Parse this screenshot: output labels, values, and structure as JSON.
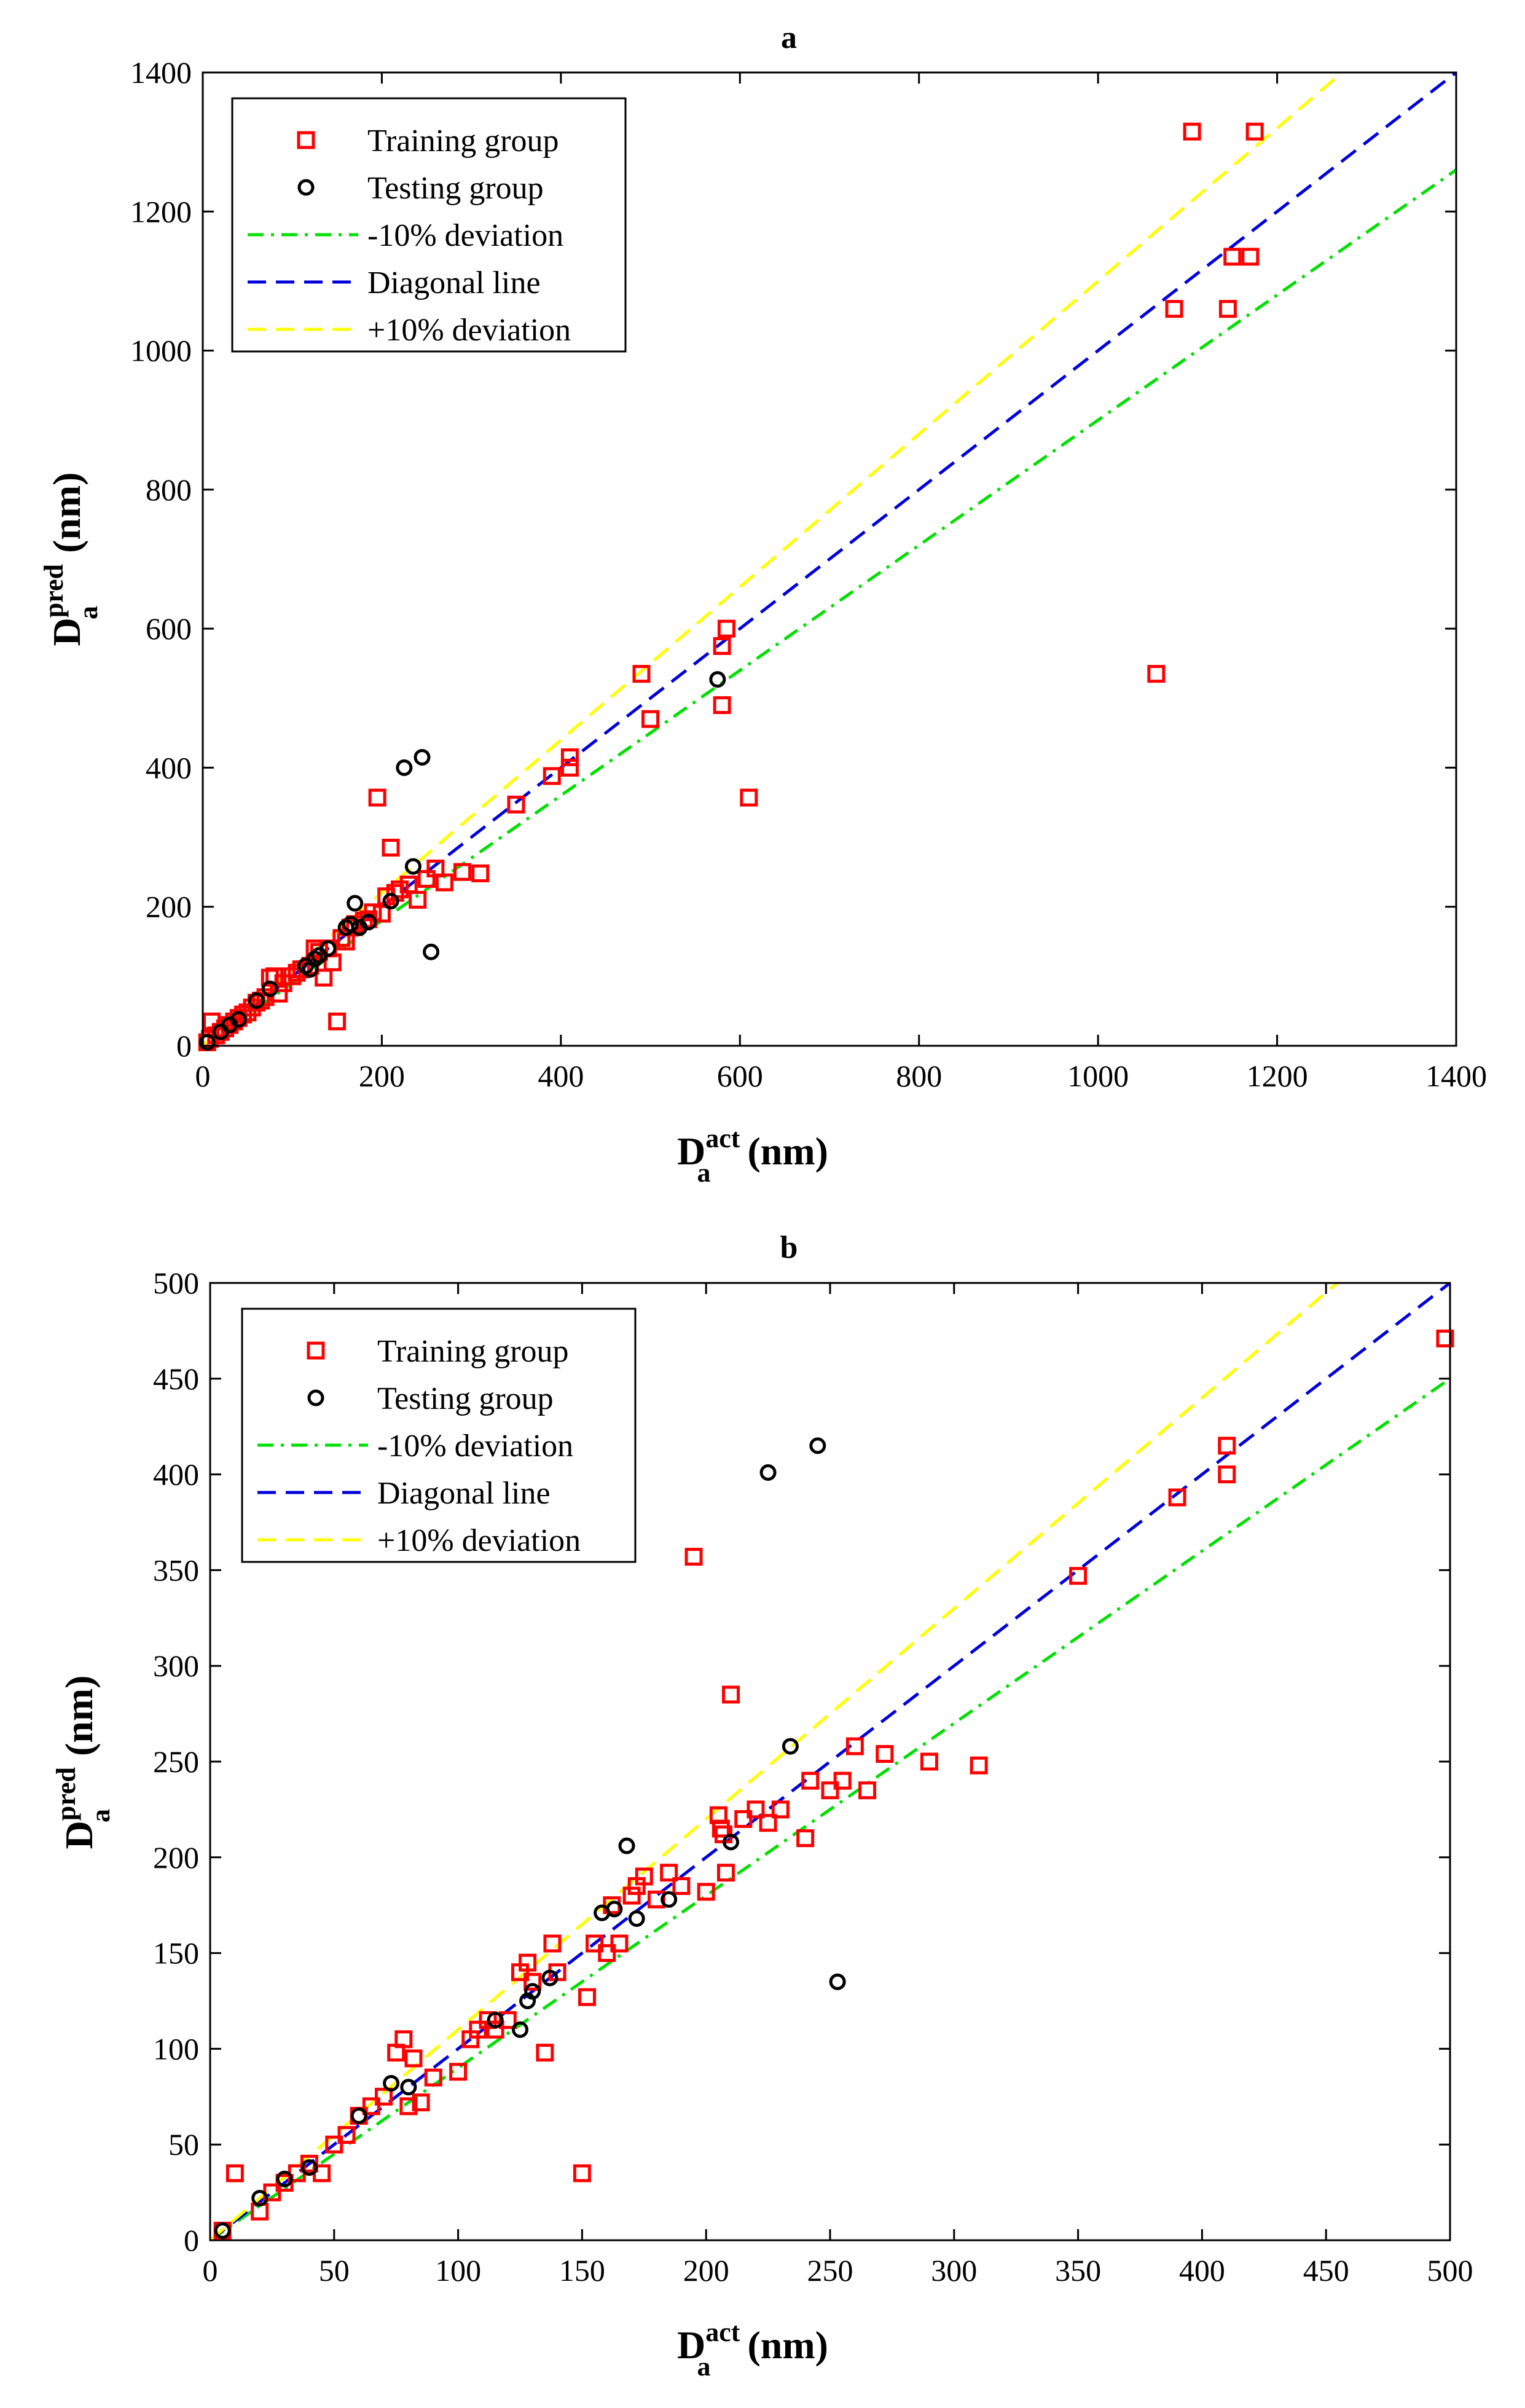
{
  "chart_data": [
    {
      "type": "scatter",
      "title": "a",
      "xlabel": "D",
      "xlabel_sup": "act",
      "xlabel_sub": "a",
      "xlabel_unit": " (nm)",
      "ylabel": "D",
      "ylabel_sup": "pred",
      "ylabel_sub": "a",
      "ylabel_unit": " (nm)",
      "xlim": [
        0,
        1400
      ],
      "ylim": [
        0,
        1400
      ],
      "xticks": [
        "0",
        "200",
        "400",
        "600",
        "800",
        "1000",
        "1200",
        "1400"
      ],
      "yticks": [
        "0",
        "200",
        "400",
        "600",
        "800",
        "1000",
        "1200",
        "1400"
      ],
      "legend_position": "top-left",
      "legend": [
        "Training group",
        "Testing group",
        "-10% deviation",
        "Diagonal line",
        "+10% deviation"
      ],
      "series": [
        {
          "name": "Training group",
          "marker": "square",
          "color": "#ff0000",
          "points": [
            [
              5,
              5
            ],
            [
              8,
              10
            ],
            [
              10,
              35
            ],
            [
              15,
              15
            ],
            [
              20,
              20
            ],
            [
              25,
              25
            ],
            [
              30,
              30
            ],
            [
              35,
              35
            ],
            [
              40,
              40
            ],
            [
              45,
              45
            ],
            [
              50,
              48
            ],
            [
              55,
              55
            ],
            [
              60,
              62
            ],
            [
              65,
              65
            ],
            [
              70,
              70
            ],
            [
              75,
              98
            ],
            [
              80,
              100
            ],
            [
              85,
              75
            ],
            [
              90,
              90
            ],
            [
              100,
              100
            ],
            [
              105,
              105
            ],
            [
              110,
              110
            ],
            [
              120,
              115
            ],
            [
              125,
              140
            ],
            [
              130,
              135
            ],
            [
              135,
              98
            ],
            [
              140,
              140
            ],
            [
              145,
              120
            ],
            [
              150,
              35
            ],
            [
              155,
              155
            ],
            [
              160,
              150
            ],
            [
              165,
              170
            ],
            [
              170,
              175
            ],
            [
              180,
              180
            ],
            [
              185,
              182
            ],
            [
              190,
              192
            ],
            [
              195,
              357
            ],
            [
              200,
              190
            ],
            [
              205,
              215
            ],
            [
              210,
              285
            ],
            [
              215,
              220
            ],
            [
              220,
              225
            ],
            [
              230,
              232
            ],
            [
              240,
              210
            ],
            [
              250,
              240
            ],
            [
              260,
              255
            ],
            [
              270,
              235
            ],
            [
              290,
              250
            ],
            [
              310,
              248
            ],
            [
              350,
              347
            ],
            [
              390,
              388
            ],
            [
              410,
              400
            ],
            [
              410,
              415
            ],
            [
              490,
              535
            ],
            [
              500,
              470
            ],
            [
              580,
              575
            ],
            [
              585,
              600
            ],
            [
              580,
              490
            ],
            [
              610,
              357
            ],
            [
              1065,
              535
            ],
            [
              1085,
              1060
            ],
            [
              1105,
              1315
            ],
            [
              1145,
              1060
            ],
            [
              1150,
              1135
            ],
            [
              1170,
              1135
            ],
            [
              1175,
              1315
            ]
          ]
        },
        {
          "name": "Testing group",
          "marker": "circle",
          "color": "#000000",
          "points": [
            [
              5,
              5
            ],
            [
              20,
              20
            ],
            [
              30,
              30
            ],
            [
              40,
              38
            ],
            [
              60,
              65
            ],
            [
              75,
              82
            ],
            [
              115,
              115
            ],
            [
              120,
              110
            ],
            [
              125,
              125
            ],
            [
              130,
              130
            ],
            [
              140,
              140
            ],
            [
              160,
              170
            ],
            [
              165,
              175
            ],
            [
              170,
              205
            ],
            [
              175,
              170
            ],
            [
              185,
              178
            ],
            [
              210,
              208
            ],
            [
              225,
              400
            ],
            [
              235,
              258
            ],
            [
              245,
              415
            ],
            [
              255,
              135
            ],
            [
              575,
              527
            ]
          ]
        }
      ],
      "reference_lines": [
        {
          "name": "-10% deviation",
          "slope": 0.9,
          "color": "#00e000",
          "style": "dash-dot"
        },
        {
          "name": "Diagonal line",
          "slope": 1.0,
          "color": "#0000dd",
          "style": "dashed"
        },
        {
          "name": "+10% deviation",
          "slope": 1.1,
          "color": "#ffff00",
          "style": "dashed"
        }
      ]
    },
    {
      "type": "scatter",
      "title": "b",
      "xlabel": "D",
      "xlabel_sup": "act",
      "xlabel_sub": "a",
      "xlabel_unit": " (nm)",
      "ylabel": "D",
      "ylabel_sup": "pred",
      "ylabel_sub": "a",
      "ylabel_unit": " (nm)",
      "xlim": [
        0,
        500
      ],
      "ylim": [
        0,
        500
      ],
      "xticks": [
        "0",
        "50",
        "100",
        "150",
        "200",
        "250",
        "300",
        "350",
        "400",
        "450",
        "500"
      ],
      "yticks": [
        "0",
        "50",
        "100",
        "150",
        "200",
        "250",
        "300",
        "350",
        "400",
        "450",
        "500"
      ],
      "legend_position": "top-left",
      "legend": [
        "Training group",
        "Testing group",
        "-10% deviation",
        "Diagonal line",
        "+10% deviation"
      ],
      "series": [
        {
          "name": "Training group",
          "marker": "square",
          "color": "#ff0000",
          "points": [
            [
              5,
              5
            ],
            [
              10,
              35
            ],
            [
              20,
              15
            ],
            [
              25,
              25
            ],
            [
              30,
              30
            ],
            [
              35,
              35
            ],
            [
              40,
              40
            ],
            [
              45,
              35
            ],
            [
              50,
              50
            ],
            [
              55,
              55
            ],
            [
              60,
              65
            ],
            [
              65,
              70
            ],
            [
              70,
              75
            ],
            [
              75,
              98
            ],
            [
              78,
              105
            ],
            [
              80,
              70
            ],
            [
              82,
              95
            ],
            [
              85,
              72
            ],
            [
              90,
              85
            ],
            [
              100,
              88
            ],
            [
              105,
              105
            ],
            [
              108,
              110
            ],
            [
              112,
              115
            ],
            [
              115,
              110
            ],
            [
              120,
              115
            ],
            [
              125,
              140
            ],
            [
              128,
              145
            ],
            [
              130,
              135
            ],
            [
              135,
              98
            ],
            [
              138,
              155
            ],
            [
              140,
              140
            ],
            [
              150,
              35
            ],
            [
              152,
              127
            ],
            [
              155,
              155
            ],
            [
              160,
              150
            ],
            [
              162,
              175
            ],
            [
              165,
              155
            ],
            [
              170,
              180
            ],
            [
              172,
              185
            ],
            [
              175,
              190
            ],
            [
              180,
              178
            ],
            [
              185,
              192
            ],
            [
              190,
              185
            ],
            [
              195,
              357
            ],
            [
              200,
              182
            ],
            [
              205,
              222
            ],
            [
              206,
              215
            ],
            [
              207,
              212
            ],
            [
              208,
              192
            ],
            [
              210,
              285
            ],
            [
              215,
              220
            ],
            [
              220,
              225
            ],
            [
              225,
              218
            ],
            [
              230,
              225
            ],
            [
              240,
              210
            ],
            [
              242,
              240
            ],
            [
              250,
              235
            ],
            [
              255,
              240
            ],
            [
              260,
              258
            ],
            [
              265,
              235
            ],
            [
              272,
              254
            ],
            [
              290,
              250
            ],
            [
              310,
              248
            ],
            [
              350,
              347
            ],
            [
              390,
              388
            ],
            [
              410,
              400
            ],
            [
              410,
              415
            ],
            [
              498,
              471
            ]
          ]
        },
        {
          "name": "Testing group",
          "marker": "circle",
          "color": "#000000",
          "points": [
            [
              5,
              5
            ],
            [
              20,
              22
            ],
            [
              30,
              32
            ],
            [
              40,
              38
            ],
            [
              60,
              65
            ],
            [
              73,
              82
            ],
            [
              80,
              80
            ],
            [
              115,
              115
            ],
            [
              125,
              110
            ],
            [
              128,
              125
            ],
            [
              130,
              130
            ],
            [
              137,
              137
            ],
            [
              158,
              171
            ],
            [
              163,
              173
            ],
            [
              168,
              206
            ],
            [
              172,
              168
            ],
            [
              185,
              178
            ],
            [
              210,
              208
            ],
            [
              225,
              401
            ],
            [
              234,
              258
            ],
            [
              245,
              415
            ],
            [
              253,
              135
            ]
          ]
        }
      ],
      "reference_lines": [
        {
          "name": "-10% deviation",
          "slope": 0.9,
          "color": "#00e000",
          "style": "dash-dot"
        },
        {
          "name": "Diagonal line",
          "slope": 1.0,
          "color": "#0000dd",
          "style": "dashed"
        },
        {
          "name": "+10% deviation",
          "slope": 1.1,
          "color": "#ffff00",
          "style": "dashed"
        }
      ]
    }
  ]
}
